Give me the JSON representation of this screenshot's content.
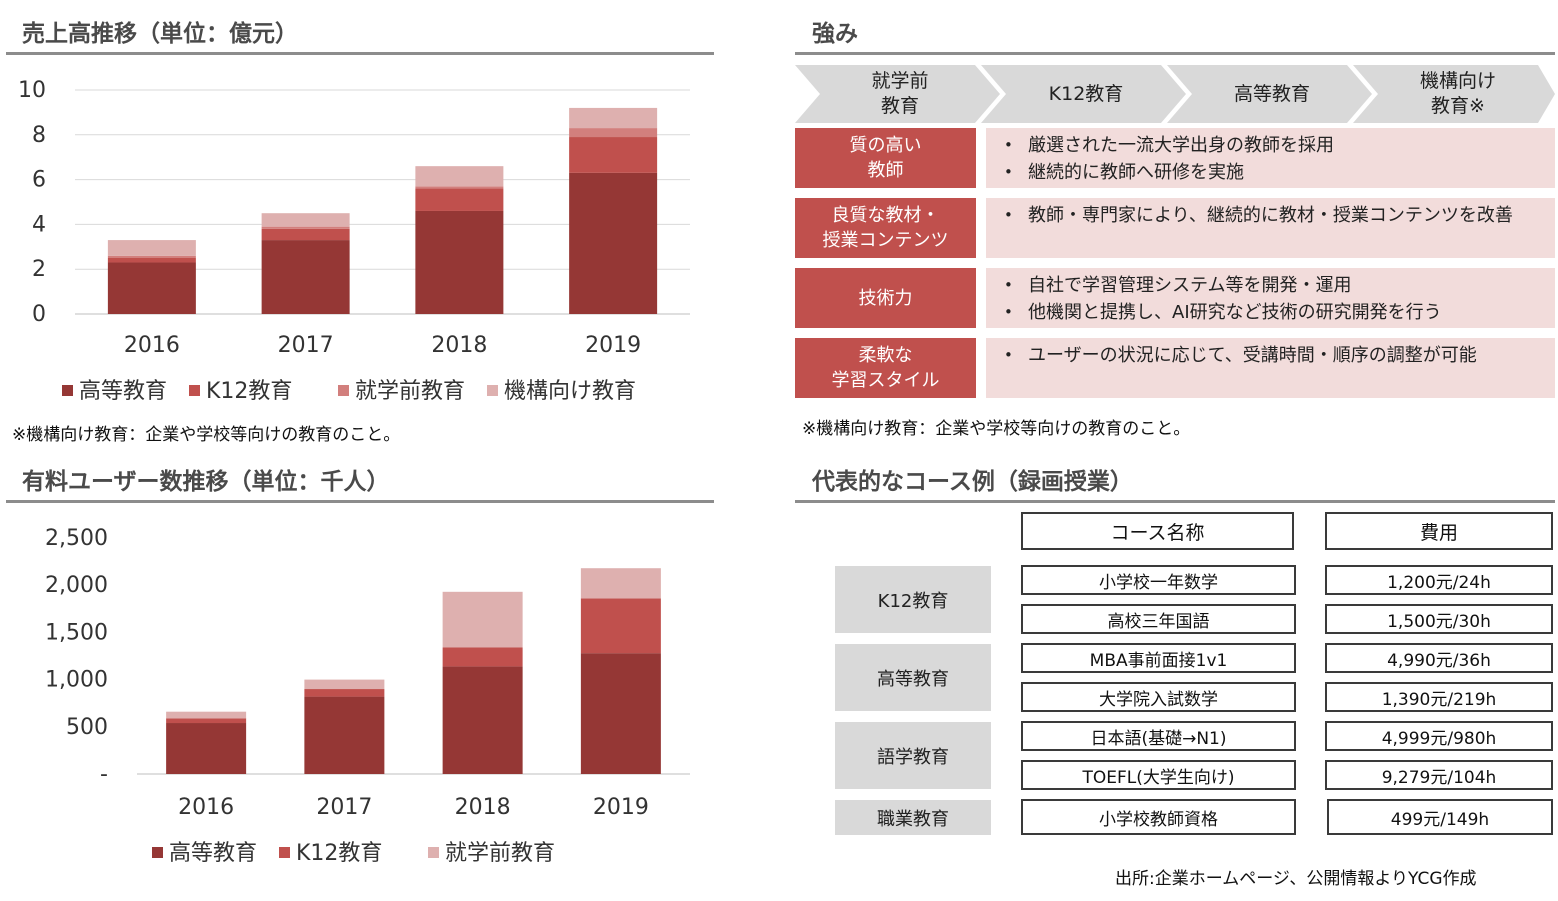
{
  "revenue_section": {
    "title": "売上高推移（単位：億元）",
    "note": "※機構向け教育：企業や学校等向けの教育のこと。"
  },
  "users_section": {
    "title": "有料ユーザー数推移（単位：千人）"
  },
  "strengths_section": {
    "title": "強み",
    "chevrons": [
      "就学前\n教育",
      "K12教育",
      "高等教育",
      "機構向け\n教育※"
    ],
    "rows": [
      {
        "label": "質の高い\n教師",
        "items": [
          "厳選された一流大学出身の教師を採用",
          "継続的に教師へ研修を実施"
        ]
      },
      {
        "label": "良質な教材・\n授業コンテンツ",
        "items": [
          "教師・専門家により、継続的に教材・授業コンテンツを改善"
        ]
      },
      {
        "label": "技術力",
        "items": [
          "自社で学習管理システム等を開発・運用",
          "他機関と提携し、AI研究など技術の研究開発を行う"
        ]
      },
      {
        "label": "柔軟な\n学習スタイル",
        "items": [
          "ユーザーの状況に応じて、受講時間・順序の調整が可能"
        ]
      }
    ],
    "note": "※機構向け教育：企業や学校等向けの教育のこと。"
  },
  "courses_section": {
    "title": "代表的なコース例（録画授業）",
    "headers": {
      "name": "コース名称",
      "price": "費用"
    },
    "categories": [
      "K12教育",
      "高等教育",
      "語学教育",
      "職業教育"
    ],
    "courses": [
      {
        "name": "小学校一年数学",
        "price": "1,200元/24h"
      },
      {
        "name": "高校三年国語",
        "price": "1,500元/30h"
      },
      {
        "name": "MBA事前面接1v1",
        "price": "4,990元/36h"
      },
      {
        "name": "大学院入試数学",
        "price": "1,390元/219h"
      },
      {
        "name": "日本語(基礎→N1)",
        "price": "4,999元/980h"
      },
      {
        "name": "TOEFL(大学生向け)",
        "price": "9,279元/104h"
      },
      {
        "name": "小学校教師資格",
        "price": "499元/149h"
      }
    ]
  },
  "source": "出所:企業ホームページ、公開情報よりYCG作成",
  "chart_data": [
    {
      "type": "bar",
      "stacked": true,
      "categories": [
        "2016",
        "2017",
        "2018",
        "2019"
      ],
      "series": [
        {
          "name": "高等教育",
          "values": [
            2.3,
            3.3,
            4.6,
            6.3
          ],
          "color": "#953735"
        },
        {
          "name": "K12教育",
          "values": [
            0.2,
            0.5,
            1.0,
            1.6
          ],
          "color": "#c0504d"
        },
        {
          "name": "就学前教育",
          "values": [
            0.1,
            0.1,
            0.1,
            0.4
          ],
          "color": "#d27f7d"
        },
        {
          "name": "機構向け教育",
          "values": [
            0.7,
            0.6,
            0.9,
            0.9
          ],
          "color": "#deb0af"
        }
      ],
      "ylim": [
        0,
        10
      ],
      "yticks": [
        "0",
        "2",
        "4",
        "6",
        "8",
        "10"
      ],
      "ytick_values": [
        0,
        2,
        4,
        6,
        8,
        10
      ],
      "grid": true,
      "legend": "bottom"
    },
    {
      "type": "bar",
      "stacked": true,
      "categories": [
        "2016",
        "2017",
        "2018",
        "2019"
      ],
      "series": [
        {
          "name": "高等教育",
          "values": [
            540,
            820,
            1140,
            1280
          ],
          "color": "#953735"
        },
        {
          "name": "K12教育",
          "values": [
            50,
            80,
            200,
            580
          ],
          "color": "#c0504d"
        },
        {
          "name": "就学前教育",
          "values": [
            70,
            100,
            590,
            320
          ],
          "color": "#deb0af"
        }
      ],
      "ylim": [
        0,
        2500
      ],
      "yticks": [
        "-",
        "500",
        "1,000",
        "1,500",
        "2,000",
        "2,500"
      ],
      "ytick_values": [
        0,
        500,
        1000,
        1500,
        2000,
        2500
      ],
      "grid": false,
      "legend": "bottom"
    }
  ]
}
